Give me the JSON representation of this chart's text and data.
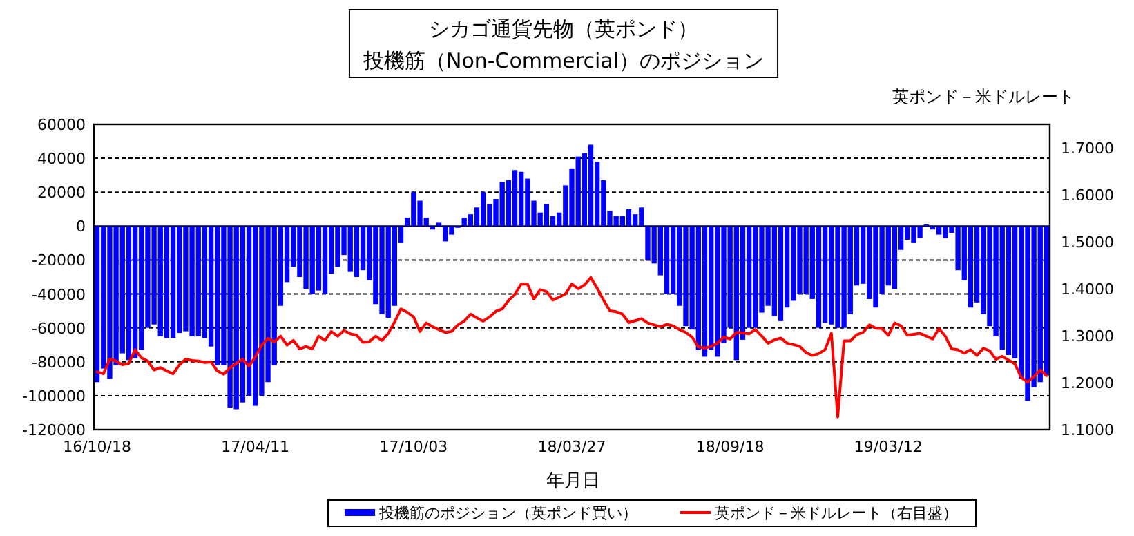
{
  "chart_data": {
    "type": "bar",
    "title": "シカゴ通貨先物（英ポンド）",
    "subtitle": "投機筋（Non-Commercial）のポジション",
    "xlabel": "年月日",
    "y2label": "英ポンド－米ドルレート",
    "categories": [
      "16/10/18",
      null,
      null,
      null,
      null,
      null,
      null,
      null,
      null,
      null,
      null,
      null,
      null,
      null,
      null,
      null,
      null,
      null,
      null,
      null,
      null,
      null,
      null,
      null,
      null,
      "17/04/11",
      null,
      null,
      null,
      null,
      null,
      null,
      null,
      null,
      null,
      null,
      null,
      null,
      null,
      null,
      null,
      null,
      null,
      null,
      null,
      null,
      null,
      null,
      null,
      null,
      "17/10/03",
      null,
      null,
      null,
      null,
      null,
      null,
      null,
      null,
      null,
      null,
      null,
      null,
      null,
      null,
      null,
      null,
      null,
      null,
      null,
      null,
      null,
      null,
      null,
      null,
      "18/03/27",
      null,
      null,
      null,
      null,
      null,
      null,
      null,
      null,
      null,
      null,
      null,
      null,
      null,
      null,
      null,
      null,
      null,
      null,
      null,
      null,
      null,
      null,
      null,
      null,
      "18/09/18",
      null,
      null,
      null,
      null,
      null,
      null,
      null,
      null,
      null,
      null,
      null,
      null,
      null,
      null,
      null,
      null,
      null,
      null,
      null,
      null,
      null,
      null,
      null,
      null,
      "19/03/12",
      null,
      null,
      null,
      null,
      null,
      null,
      null,
      null,
      null,
      null,
      null,
      null,
      null,
      null,
      null,
      null,
      null,
      null,
      null,
      null,
      null,
      null,
      null,
      null,
      null
    ],
    "series": [
      {
        "name": "投機筋のポジション（英ポンド買い）",
        "color": "#0000ff",
        "values": [
          -92000,
          -84000,
          -90000,
          -82000,
          -75000,
          -79000,
          -78000,
          -73000,
          -60000,
          -58000,
          -65000,
          -66000,
          -66000,
          -63000,
          -62000,
          -65000,
          -65000,
          -66000,
          -71000,
          -82000,
          -82000,
          -107000,
          -108000,
          -104000,
          -100000,
          -106000,
          -100000,
          -92000,
          -82000,
          -47000,
          -33000,
          -24000,
          -30000,
          -37000,
          -40000,
          -38000,
          -40000,
          -28000,
          -24000,
          -17000,
          -27000,
          -30000,
          -26000,
          -32000,
          -46000,
          -52000,
          -54000,
          -47000,
          -10000,
          5000,
          20000,
          15000,
          5000,
          -2000,
          2000,
          -9000,
          -5000,
          -1000,
          5000,
          7000,
          11000,
          20000,
          13000,
          16000,
          26000,
          27000,
          33000,
          32000,
          28000,
          15000,
          8000,
          13000,
          6000,
          8000,
          24000,
          34000,
          41000,
          43000,
          48000,
          38000,
          27000,
          9000,
          6000,
          6000,
          10000,
          7000,
          11000,
          -20000,
          -22000,
          -29000,
          -40000,
          -40000,
          -47000,
          -59000,
          -61000,
          -73000,
          -77000,
          -73000,
          -77000,
          -69000,
          -60000,
          -79000,
          -67000,
          -60000,
          -60000,
          -51000,
          -47000,
          -53000,
          -56000,
          -48000,
          -44000,
          -40000,
          -40000,
          -43000,
          -60000,
          -57000,
          -58000,
          -60000,
          -60000,
          -52000,
          -35000,
          -34000,
          -43000,
          -48000,
          -40000,
          -35000,
          -37000,
          -14000,
          -8000,
          -10000,
          -7000,
          1000,
          -2000,
          -5000,
          -7000,
          -4000,
          -26000,
          -32000,
          -48000,
          -45000,
          -52000,
          -59000,
          -65000,
          -73000,
          -76000,
          -78000,
          -90000,
          -103000,
          -95000,
          -92000,
          -88000
        ]
      },
      {
        "name": "英ポンド－米ドルレート（右目盛）",
        "type": "line",
        "axis": "y2",
        "color": "#ff0000",
        "values": [
          1.223,
          1.219,
          1.25,
          1.246,
          1.238,
          1.241,
          1.27,
          1.253,
          1.246,
          1.227,
          1.232,
          1.225,
          1.219,
          1.238,
          1.25,
          1.247,
          1.246,
          1.243,
          1.244,
          1.225,
          1.218,
          1.232,
          1.241,
          1.25,
          1.235,
          1.255,
          1.28,
          1.294,
          1.287,
          1.299,
          1.28,
          1.29,
          1.272,
          1.277,
          1.272,
          1.299,
          1.29,
          1.309,
          1.299,
          1.311,
          1.304,
          1.301,
          1.286,
          1.287,
          1.299,
          1.29,
          1.305,
          1.329,
          1.357,
          1.35,
          1.34,
          1.309,
          1.327,
          1.319,
          1.313,
          1.307,
          1.309,
          1.323,
          1.331,
          1.346,
          1.338,
          1.331,
          1.34,
          1.352,
          1.357,
          1.375,
          1.388,
          1.41,
          1.41,
          1.378,
          1.398,
          1.394,
          1.376,
          1.382,
          1.389,
          1.41,
          1.4,
          1.408,
          1.424,
          1.401,
          1.376,
          1.353,
          1.351,
          1.346,
          1.328,
          1.332,
          1.336,
          1.327,
          1.323,
          1.319,
          1.324,
          1.321,
          1.313,
          1.307,
          1.297,
          1.276,
          1.274,
          1.277,
          1.284,
          1.297,
          1.293,
          1.307,
          1.306,
          1.304,
          1.313,
          1.299,
          1.284,
          1.291,
          1.295,
          1.284,
          1.281,
          1.277,
          1.264,
          1.258,
          1.262,
          1.27,
          1.305,
          1.127,
          1.289,
          1.289,
          1.302,
          1.307,
          1.323,
          1.316,
          1.315,
          1.301,
          1.327,
          1.321,
          1.301,
          1.303,
          1.305,
          1.299,
          1.293,
          1.315,
          1.299,
          1.272,
          1.27,
          1.263,
          1.27,
          1.258,
          1.273,
          1.268,
          1.25,
          1.256,
          1.248,
          1.24,
          1.211,
          1.201,
          1.213,
          1.227,
          1.215
        ]
      }
    ],
    "ylim": [
      -120000,
      60000
    ],
    "yticks": [
      -120000,
      -100000,
      -80000,
      -60000,
      -40000,
      -20000,
      0,
      20000,
      40000,
      60000
    ],
    "y2lim": [
      1.1,
      1.75
    ],
    "y2ticks": [
      {
        "value": 1.1,
        "label": "1.1000"
      },
      {
        "value": 1.2,
        "label": "1.2000"
      },
      {
        "value": 1.3,
        "label": "1.3000"
      },
      {
        "value": 1.4,
        "label": "1.4000"
      },
      {
        "value": 1.5,
        "label": "1.5000"
      },
      {
        "value": 1.6,
        "label": "1.6000"
      },
      {
        "value": 1.7,
        "label": "1.7000"
      }
    ],
    "grid": "y",
    "legend": "bottom"
  }
}
